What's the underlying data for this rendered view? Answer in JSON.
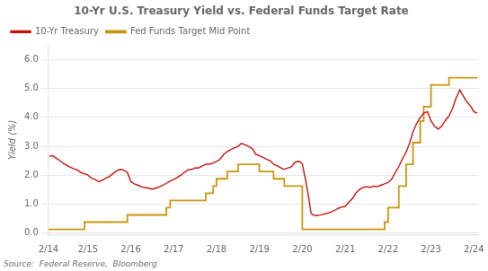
{
  "chart_data": {
    "type": "line",
    "title": "10-Yr U.S. Treasury Yield vs. Federal Funds Target Rate",
    "ylabel": "Yield (%)",
    "annotations": [
      "Source:  Federal Reserve,  Bloomberg"
    ],
    "xlim": [
      2014.08,
      2024.12
    ],
    "xticks": [
      {
        "value": 2014.08,
        "label": "2/14"
      },
      {
        "value": 2015.0,
        "label": "2/15"
      },
      {
        "value": 2016.0,
        "label": "2/16"
      },
      {
        "value": 2017.0,
        "label": "2/17"
      },
      {
        "value": 2018.0,
        "label": "2/18"
      },
      {
        "value": 2019.0,
        "label": "2/19"
      },
      {
        "value": 2020.0,
        "label": "2/20"
      },
      {
        "value": 2021.0,
        "label": "2/21"
      },
      {
        "value": 2022.0,
        "label": "2/22"
      },
      {
        "value": 2023.0,
        "label": "2/23"
      },
      {
        "value": 2024.0,
        "label": "2/24"
      }
    ],
    "ylim": [
      -0.05,
      6.5
    ],
    "yticks": [
      {
        "value": 0,
        "label": "0.0"
      },
      {
        "value": 1,
        "label": "1.0"
      },
      {
        "value": 2,
        "label": "2.0"
      },
      {
        "value": 3,
        "label": "3.0"
      },
      {
        "value": 4,
        "label": "4.0"
      },
      {
        "value": 5,
        "label": "5.0"
      },
      {
        "value": 6,
        "label": "6.0"
      }
    ],
    "grid": "y",
    "legend": "top",
    "series": [
      {
        "name": "10-Yr Treasury",
        "color": "#c0130f",
        "x": [
          2014.1,
          2014.17,
          2014.25,
          2014.33,
          2014.42,
          2014.5,
          2014.58,
          2014.67,
          2014.75,
          2014.83,
          2014.92,
          2015.0,
          2015.08,
          2015.17,
          2015.25,
          2015.33,
          2015.42,
          2015.5,
          2015.58,
          2015.67,
          2015.75,
          2015.83,
          2015.92,
          2016.0,
          2016.08,
          2016.17,
          2016.25,
          2016.33,
          2016.42,
          2016.5,
          2016.58,
          2016.67,
          2016.75,
          2016.83,
          2016.92,
          2017.0,
          2017.08,
          2017.17,
          2017.25,
          2017.33,
          2017.42,
          2017.5,
          2017.58,
          2017.67,
          2017.75,
          2017.83,
          2017.92,
          2018.0,
          2018.08,
          2018.17,
          2018.25,
          2018.33,
          2018.42,
          2018.5,
          2018.58,
          2018.67,
          2018.75,
          2018.83,
          2018.92,
          2019.0,
          2019.08,
          2019.17,
          2019.25,
          2019.33,
          2019.42,
          2019.5,
          2019.58,
          2019.67,
          2019.75,
          2019.83,
          2019.92,
          2020.0,
          2020.08,
          2020.15,
          2020.2,
          2020.25,
          2020.33,
          2020.42,
          2020.5,
          2020.58,
          2020.67,
          2020.75,
          2020.83,
          2020.92,
          2021.0,
          2021.08,
          2021.17,
          2021.25,
          2021.33,
          2021.42,
          2021.5,
          2021.58,
          2021.67,
          2021.75,
          2021.83,
          2021.92,
          2022.0,
          2022.08,
          2022.17,
          2022.25,
          2022.33,
          2022.42,
          2022.5,
          2022.58,
          2022.67,
          2022.75,
          2022.83,
          2022.92,
          2023.0,
          2023.08,
          2023.17,
          2023.25,
          2023.33,
          2023.42,
          2023.5,
          2023.58,
          2023.67,
          2023.75,
          2023.83,
          2023.92,
          2024.0,
          2024.08
        ],
        "values": [
          2.65,
          2.68,
          2.6,
          2.52,
          2.42,
          2.35,
          2.28,
          2.22,
          2.18,
          2.1,
          2.05,
          2.0,
          1.9,
          1.85,
          1.78,
          1.82,
          1.9,
          1.95,
          2.05,
          2.15,
          2.2,
          2.18,
          2.1,
          1.78,
          1.7,
          1.65,
          1.6,
          1.57,
          1.55,
          1.52,
          1.55,
          1.6,
          1.65,
          1.72,
          1.8,
          1.85,
          1.92,
          2.0,
          2.1,
          2.18,
          2.2,
          2.25,
          2.25,
          2.32,
          2.38,
          2.38,
          2.42,
          2.48,
          2.55,
          2.72,
          2.82,
          2.88,
          2.95,
          3.0,
          3.1,
          3.05,
          3.0,
          2.92,
          2.72,
          2.68,
          2.62,
          2.55,
          2.5,
          2.38,
          2.32,
          2.25,
          2.2,
          2.25,
          2.3,
          2.45,
          2.48,
          2.4,
          1.8,
          1.2,
          0.7,
          0.62,
          0.6,
          0.62,
          0.65,
          0.68,
          0.72,
          0.78,
          0.85,
          0.9,
          0.92,
          1.05,
          1.2,
          1.38,
          1.5,
          1.58,
          1.6,
          1.58,
          1.62,
          1.6,
          1.65,
          1.7,
          1.75,
          1.85,
          2.1,
          2.3,
          2.55,
          2.8,
          3.1,
          3.5,
          3.8,
          4.0,
          4.15,
          4.2,
          3.88,
          3.7,
          3.6,
          3.7,
          3.88,
          4.05,
          4.3,
          4.65,
          4.95,
          4.75,
          4.55,
          4.4,
          4.2,
          4.15
        ]
      },
      {
        "name": "Fed Funds Target Mid Point",
        "color": "#c8960c",
        "type": "step",
        "x": [
          2014.08,
          2014.92,
          2015.0,
          2015.92,
          2016.0,
          2016.83,
          2016.92,
          2017.0,
          2017.75,
          2017.92,
          2018.0,
          2018.25,
          2018.5,
          2018.75,
          2018.92,
          2019.0,
          2019.33,
          2019.58,
          2019.92,
          2020.0,
          2020.17,
          2020.92,
          2021.0,
          2021.92,
          2022.0,
          2022.25,
          2022.42,
          2022.58,
          2022.75,
          2022.83,
          2022.92,
          2023.0,
          2023.42,
          2023.58,
          2023.92,
          2024.08
        ],
        "values": [
          0.125,
          0.125,
          0.375,
          0.375,
          0.625,
          0.625,
          0.875,
          1.125,
          1.125,
          1.375,
          1.625,
          1.875,
          2.125,
          2.375,
          2.375,
          2.375,
          2.125,
          1.875,
          1.625,
          1.625,
          0.125,
          0.125,
          0.125,
          0.125,
          0.375,
          0.875,
          1.625,
          2.375,
          3.125,
          3.875,
          4.375,
          4.375,
          5.125,
          5.375,
          5.375,
          5.375
        ]
      }
    ]
  }
}
